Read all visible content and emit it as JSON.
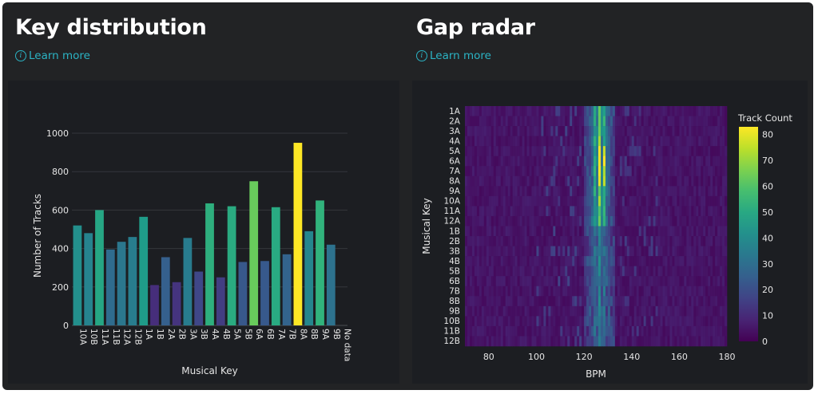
{
  "panels": {
    "left": {
      "title": "Key distribution",
      "learn_more": "Learn more",
      "info_icon": "info-icon"
    },
    "right": {
      "title": "Gap radar",
      "learn_more": "Learn more",
      "info_icon": "info-icon"
    }
  },
  "chart_data": [
    {
      "type": "bar",
      "title": "",
      "xlabel": "Musical Key",
      "ylabel": "Number of Tracks",
      "ylim": [
        0,
        1000
      ],
      "yticks": [
        0,
        200,
        400,
        600,
        800,
        1000
      ],
      "grid": true,
      "colormap": "viridis",
      "categories": [
        "10A",
        "10B",
        "11A",
        "11B",
        "12A",
        "12B",
        "1A",
        "1B",
        "2A",
        "2B",
        "3A",
        "3B",
        "4A",
        "4B",
        "5A",
        "5B",
        "6A",
        "6B",
        "7A",
        "7B",
        "8A",
        "8B",
        "9A",
        "9B",
        "No data"
      ],
      "values": [
        520,
        480,
        600,
        395,
        435,
        460,
        565,
        210,
        355,
        225,
        455,
        280,
        635,
        250,
        620,
        330,
        750,
        335,
        615,
        370,
        950,
        490,
        650,
        420,
        0
      ]
    },
    {
      "type": "heatmap",
      "title": "",
      "xlabel": "BPM",
      "ylabel": "Musical Key",
      "xlim": [
        70,
        180
      ],
      "xticks": [
        80,
        100,
        120,
        140,
        160,
        180
      ],
      "rows": [
        "1A",
        "2A",
        "3A",
        "4A",
        "5A",
        "6A",
        "7A",
        "8A",
        "9A",
        "10A",
        "11A",
        "12A",
        "1B",
        "2B",
        "3B",
        "4B",
        "5B",
        "6B",
        "7B",
        "8B",
        "9B",
        "10B",
        "11B",
        "12B"
      ],
      "colorbar": {
        "title": "Track Count",
        "ticks": [
          0,
          10,
          20,
          30,
          40,
          50,
          60,
          70,
          80
        ],
        "range": [
          0,
          83
        ]
      },
      "colormap": "viridis"
    }
  ]
}
